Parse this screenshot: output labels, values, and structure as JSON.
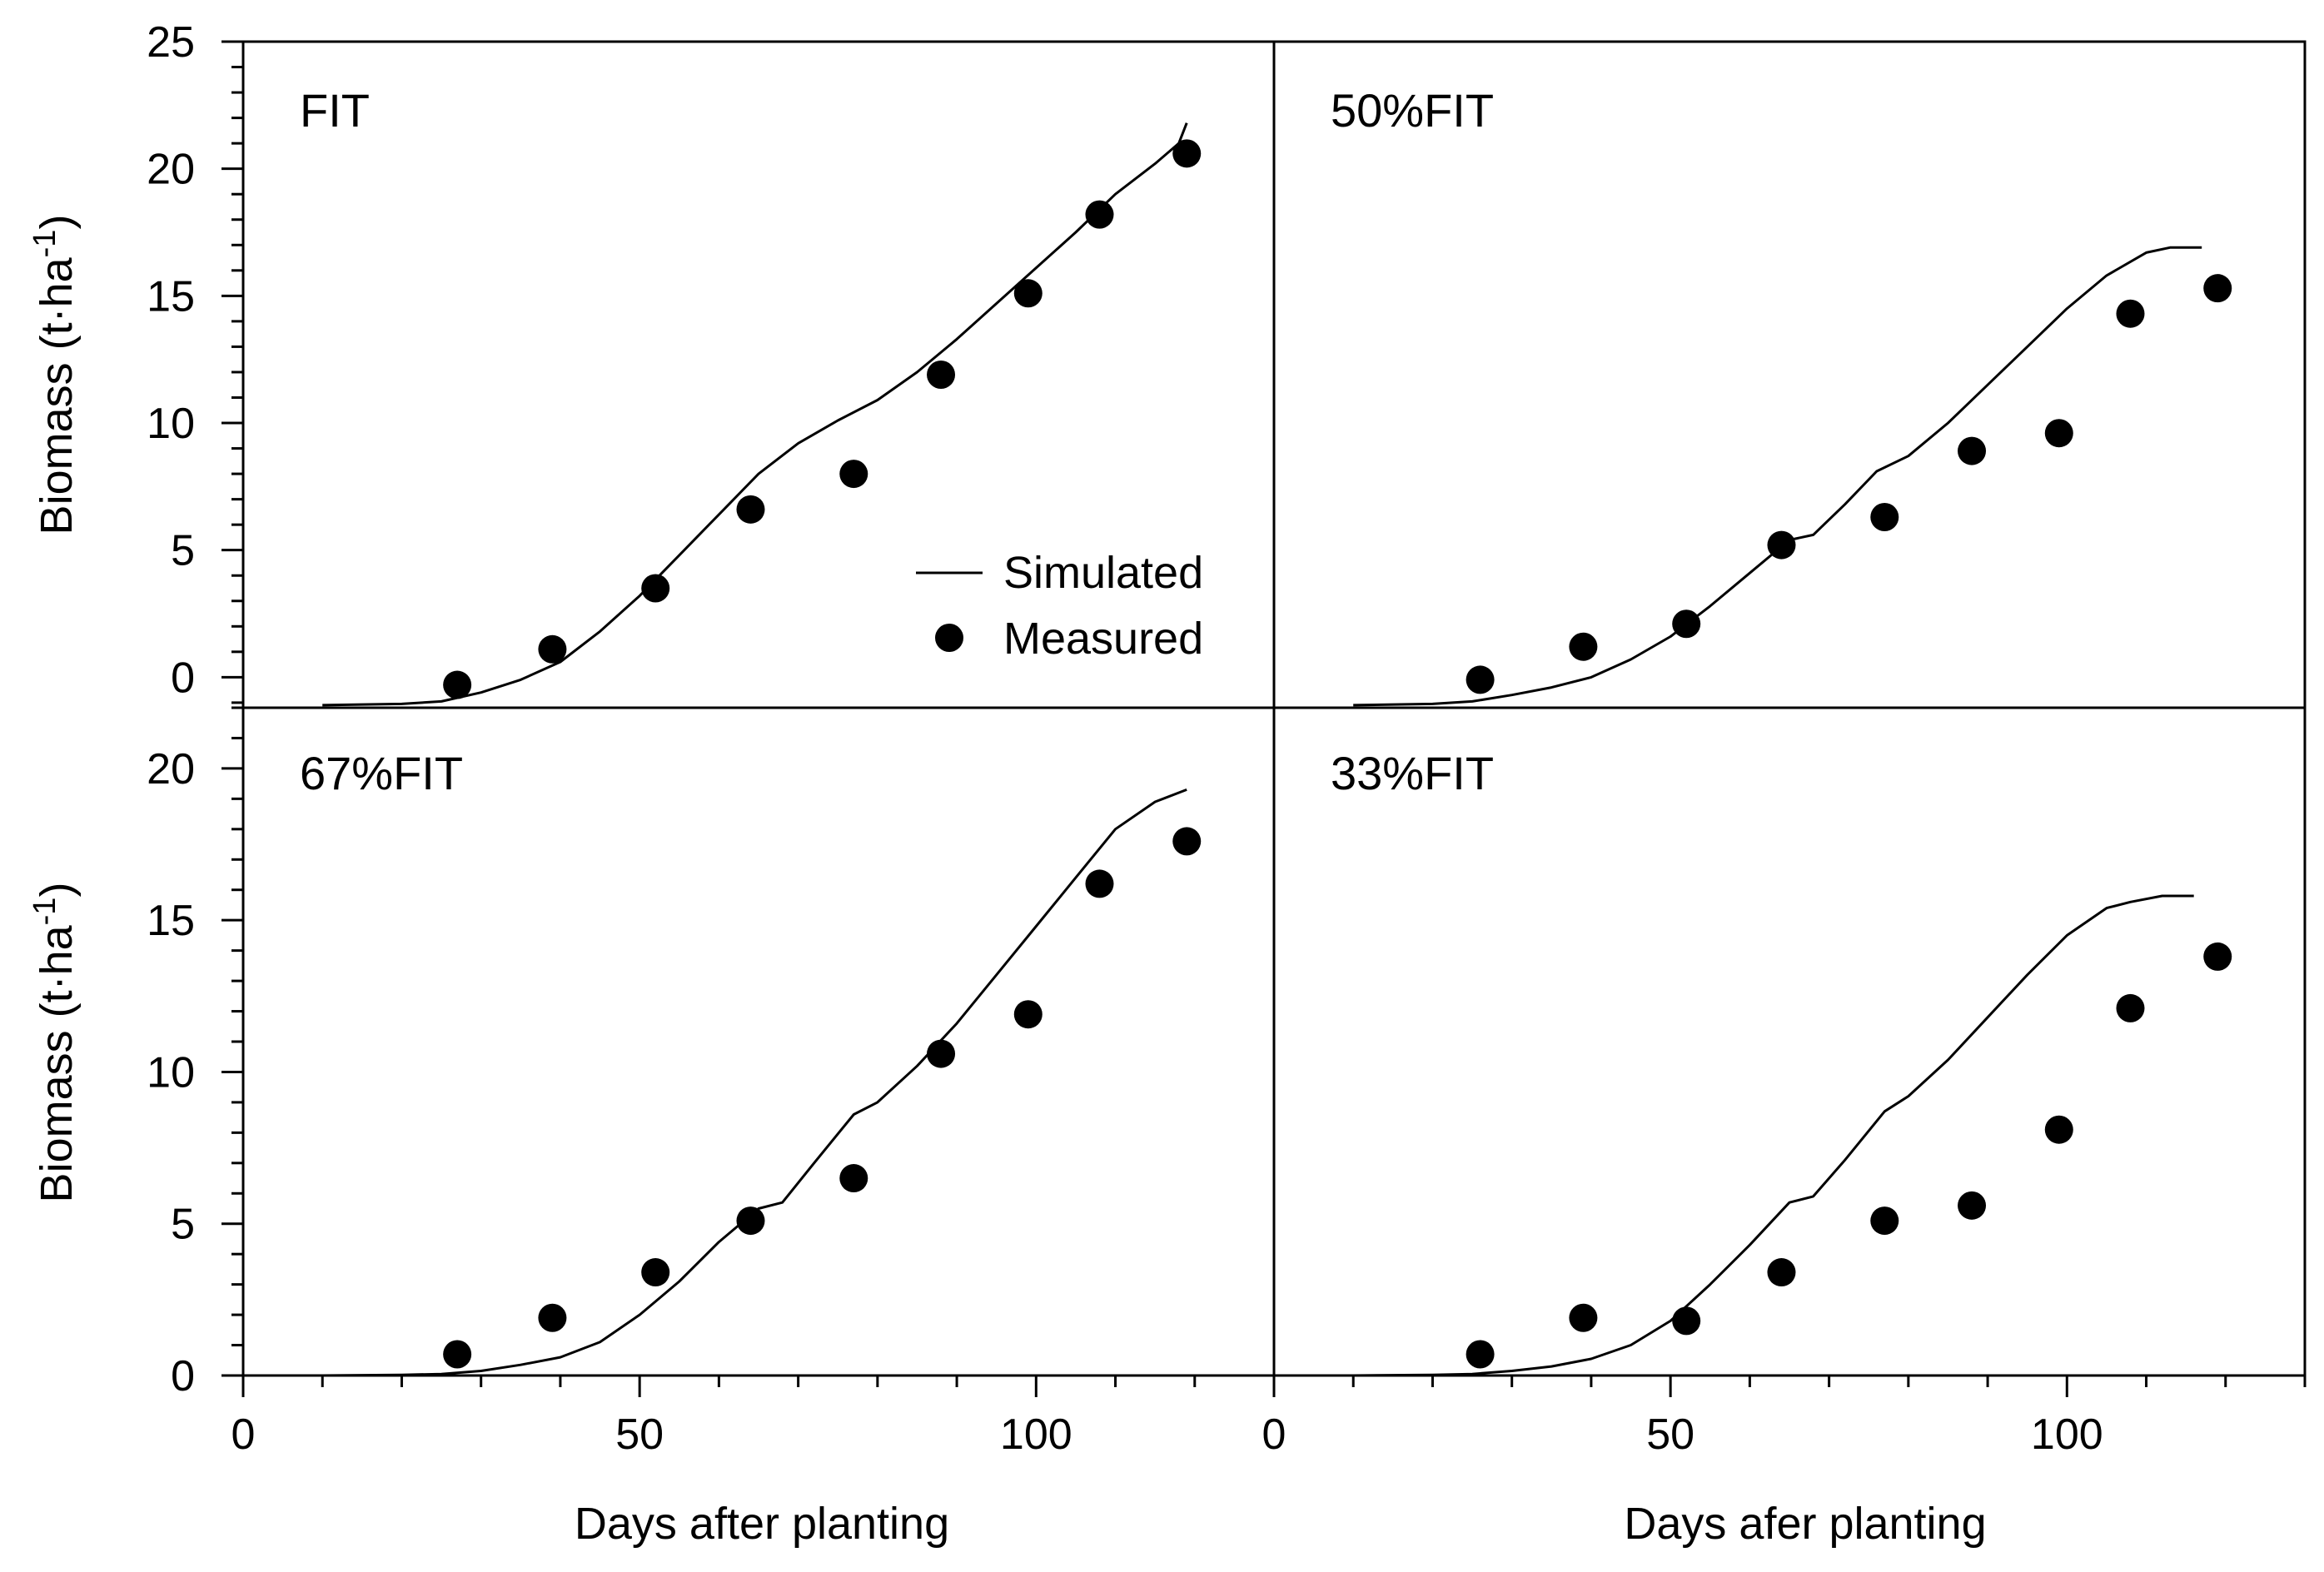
{
  "chart_data": {
    "type": "line",
    "layout": "2x2 grid",
    "xlim": [
      0,
      130
    ],
    "legend": {
      "position": "top-left panel, lower-right",
      "entries": [
        {
          "label": "Simulated",
          "style": "line"
        },
        {
          "label": "Measured",
          "style": "marker"
        }
      ]
    },
    "panels": [
      {
        "id": "fit",
        "label": "FIT",
        "ylabel": "Biomass (t·ha-1)",
        "ylim": [
          -1.2,
          25
        ],
        "yticks": [
          0,
          5,
          10,
          15,
          20,
          25
        ],
        "xticks": [],
        "xlabel": "",
        "simulated": [
          [
            10,
            -1.1
          ],
          [
            20,
            -1.05
          ],
          [
            25,
            -0.95
          ],
          [
            30,
            -0.6
          ],
          [
            35,
            -0.1
          ],
          [
            40,
            0.6
          ],
          [
            45,
            1.8
          ],
          [
            50,
            3.2
          ],
          [
            55,
            4.8
          ],
          [
            60,
            6.4
          ],
          [
            65,
            8.0
          ],
          [
            70,
            9.2
          ],
          [
            75,
            10.1
          ],
          [
            80,
            10.9
          ],
          [
            85,
            12.0
          ],
          [
            90,
            13.3
          ],
          [
            95,
            14.7
          ],
          [
            100,
            16.1
          ],
          [
            105,
            17.5
          ],
          [
            110,
            19.0
          ],
          [
            115,
            20.2
          ],
          [
            118,
            21.0
          ],
          [
            119,
            21.8
          ]
        ],
        "measured": [
          [
            27,
            -0.3
          ],
          [
            39,
            1.1
          ],
          [
            52,
            3.5
          ],
          [
            64,
            6.6
          ],
          [
            77,
            8.0
          ],
          [
            88,
            11.9
          ],
          [
            99,
            15.1
          ],
          [
            108,
            18.2
          ],
          [
            119,
            20.6
          ]
        ]
      },
      {
        "id": "fit50",
        "label": "50%FIT",
        "ylabel": "",
        "ylim": [
          -1.2,
          25
        ],
        "yticks": [
          0,
          5,
          10,
          15,
          20,
          25
        ],
        "xticks": [],
        "xlabel": "",
        "simulated": [
          [
            10,
            -1.1
          ],
          [
            20,
            -1.05
          ],
          [
            25,
            -0.95
          ],
          [
            30,
            -0.7
          ],
          [
            35,
            -0.4
          ],
          [
            40,
            0.0
          ],
          [
            45,
            0.7
          ],
          [
            50,
            1.6
          ],
          [
            55,
            2.8
          ],
          [
            60,
            4.1
          ],
          [
            65,
            5.4
          ],
          [
            68,
            5.6
          ],
          [
            72,
            6.8
          ],
          [
            76,
            8.1
          ],
          [
            80,
            8.7
          ],
          [
            85,
            10.0
          ],
          [
            90,
            11.5
          ],
          [
            95,
            13.0
          ],
          [
            100,
            14.5
          ],
          [
            105,
            15.8
          ],
          [
            110,
            16.7
          ],
          [
            113,
            16.9
          ],
          [
            117,
            16.9
          ]
        ],
        "measured": [
          [
            26,
            -0.1
          ],
          [
            39,
            1.2
          ],
          [
            52,
            2.1
          ],
          [
            64,
            5.2
          ],
          [
            77,
            6.3
          ],
          [
            88,
            8.9
          ],
          [
            99,
            9.6
          ],
          [
            108,
            14.3
          ],
          [
            119,
            15.3
          ]
        ]
      },
      {
        "id": "fit67",
        "label": "67%FIT",
        "ylabel": "Biomass (t·ha-1)",
        "ylim": [
          0,
          22
        ],
        "yticks": [
          0,
          5,
          10,
          15,
          20
        ],
        "xticks": [
          0,
          50,
          100
        ],
        "xlabel": "Days after planting",
        "simulated": [
          [
            10,
            0.0
          ],
          [
            20,
            0.02
          ],
          [
            25,
            0.05
          ],
          [
            30,
            0.15
          ],
          [
            35,
            0.35
          ],
          [
            40,
            0.6
          ],
          [
            45,
            1.1
          ],
          [
            50,
            2.0
          ],
          [
            55,
            3.1
          ],
          [
            60,
            4.4
          ],
          [
            65,
            5.5
          ],
          [
            68,
            5.7
          ],
          [
            72,
            7.0
          ],
          [
            77,
            8.6
          ],
          [
            80,
            9.0
          ],
          [
            85,
            10.2
          ],
          [
            90,
            11.6
          ],
          [
            95,
            13.2
          ],
          [
            100,
            14.8
          ],
          [
            105,
            16.4
          ],
          [
            110,
            18.0
          ],
          [
            115,
            18.9
          ],
          [
            119,
            19.3
          ]
        ],
        "measured": [
          [
            27,
            0.7
          ],
          [
            39,
            1.9
          ],
          [
            52,
            3.4
          ],
          [
            64,
            5.1
          ],
          [
            77,
            6.5
          ],
          [
            88,
            10.6
          ],
          [
            99,
            11.9
          ],
          [
            108,
            16.2
          ],
          [
            119,
            17.6
          ]
        ]
      },
      {
        "id": "fit33",
        "label": "33%FIT",
        "ylabel": "",
        "ylim": [
          0,
          22
        ],
        "yticks": [
          0,
          5,
          10,
          15,
          20
        ],
        "xticks": [
          0,
          50,
          100
        ],
        "xlabel": "Days afer planting",
        "simulated": [
          [
            10,
            0.0
          ],
          [
            20,
            0.02
          ],
          [
            25,
            0.05
          ],
          [
            30,
            0.15
          ],
          [
            35,
            0.3
          ],
          [
            40,
            0.55
          ],
          [
            45,
            1.0
          ],
          [
            50,
            1.8
          ],
          [
            55,
            3.0
          ],
          [
            60,
            4.3
          ],
          [
            65,
            5.7
          ],
          [
            68,
            5.9
          ],
          [
            72,
            7.1
          ],
          [
            77,
            8.7
          ],
          [
            80,
            9.2
          ],
          [
            85,
            10.4
          ],
          [
            90,
            11.8
          ],
          [
            95,
            13.2
          ],
          [
            100,
            14.5
          ],
          [
            105,
            15.4
          ],
          [
            108,
            15.6
          ],
          [
            112,
            15.8
          ],
          [
            116,
            15.8
          ]
        ],
        "measured": [
          [
            26,
            0.7
          ],
          [
            39,
            1.9
          ],
          [
            52,
            1.8
          ],
          [
            64,
            3.4
          ],
          [
            77,
            5.1
          ],
          [
            88,
            5.6
          ],
          [
            99,
            8.1
          ],
          [
            108,
            12.1
          ],
          [
            119,
            13.8
          ]
        ]
      }
    ]
  }
}
